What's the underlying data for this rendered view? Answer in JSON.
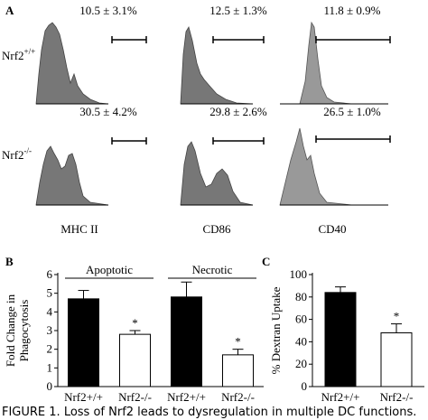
{
  "panel_a": {
    "label": "A",
    "rows": [
      {
        "text": "Nrf2",
        "sup": "+/+"
      },
      {
        "text": "Nrf2",
        "sup": "-/-"
      }
    ],
    "columns": [
      "MHC II",
      "CD86",
      "CD40"
    ],
    "gates": [
      [
        "10.5 ± 3.1%",
        "12.5 ± 1.3%",
        "11.8 ± 0.9%"
      ],
      [
        "30.5 ± 4.2%",
        "29.8 ± 2.6%",
        "26.5 ± 1.0%"
      ]
    ]
  },
  "chart_data": [
    {
      "type": "bar",
      "label": "B",
      "ylabel": [
        "Fold Change in",
        "Phagocytosis"
      ],
      "groups": [
        "Apoptotic",
        "Necrotic"
      ],
      "categories": [
        "Nrf2+/+",
        "Nrf2-/-",
        "Nrf2+/+",
        "Nrf2-/-"
      ],
      "values": [
        4.7,
        2.8,
        4.8,
        1.7
      ],
      "errors": [
        0.45,
        0.2,
        0.8,
        0.3
      ],
      "colors": [
        "#000000",
        "#ffffff",
        "#000000",
        "#ffffff"
      ],
      "significance": [
        null,
        "*",
        null,
        "*"
      ],
      "ylim": [
        0,
        6
      ],
      "yticks": [
        0,
        1,
        2,
        3,
        4,
        5,
        6
      ]
    },
    {
      "type": "bar",
      "label": "C",
      "ylabel": [
        "% Dextran Uptake"
      ],
      "categories": [
        "Nrf2+/+",
        "Nrf2-/-"
      ],
      "values": [
        84,
        48
      ],
      "errors": [
        5,
        8
      ],
      "colors": [
        "#000000",
        "#ffffff"
      ],
      "significance": [
        null,
        "*"
      ],
      "ylim": [
        0,
        100
      ],
      "yticks": [
        0,
        20,
        40,
        60,
        80,
        100
      ]
    }
  ],
  "caption": "FIGURE 1. Loss of Nrf2 leads to dysregulation in multiple DC functions."
}
